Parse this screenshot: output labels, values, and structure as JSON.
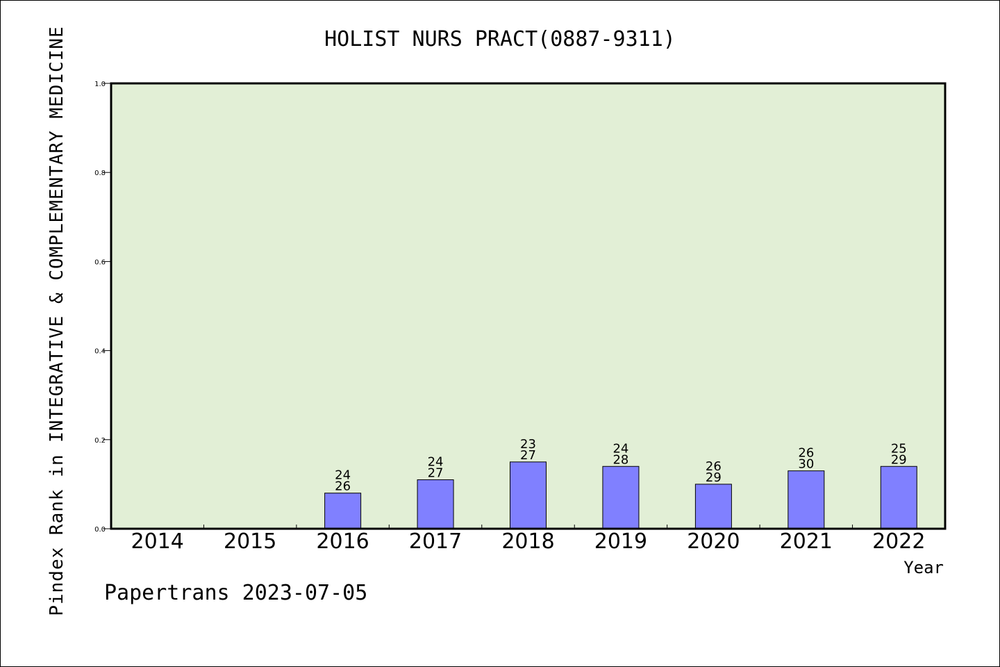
{
  "chart_data": {
    "type": "bar",
    "title": "HOLIST NURS PRACT(0887-9311)",
    "ylabel": "Pindex Rank in INTEGRATIVE & COMPLEMENTARY MEDICINE",
    "xlabel": "Year",
    "source": "Papertrans 2023-07-05",
    "ylim": [
      0,
      1.0
    ],
    "yticks": [
      "0.0",
      "0.2",
      "0.4",
      "0.6",
      "0.8",
      "1.0"
    ],
    "categories": [
      "2014",
      "2015",
      "2016",
      "2017",
      "2018",
      "2019",
      "2020",
      "2021",
      "2022"
    ],
    "values": [
      null,
      null,
      0.08,
      0.11,
      0.15,
      0.14,
      0.1,
      0.13,
      0.14
    ],
    "rank": [
      null,
      null,
      "24",
      "24",
      "23",
      "24",
      "26",
      "26",
      "25"
    ],
    "total": [
      null,
      null,
      "26",
      "27",
      "27",
      "28",
      "29",
      "30",
      "29"
    ],
    "grid": false,
    "colors": {
      "plot_background": "#e2efd6",
      "bar": "#8080ff",
      "axis": "#000000"
    }
  }
}
